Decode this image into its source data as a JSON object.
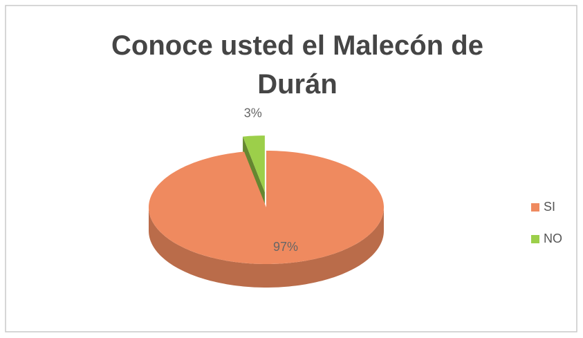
{
  "chart_data": {
    "type": "pie",
    "title": "Conoce usted el Malecón de Durán",
    "categories": [
      "SI",
      "NO"
    ],
    "values": [
      97,
      3
    ],
    "value_labels": [
      "97%",
      "3%"
    ],
    "colors": [
      "#ef8a5f",
      "#9ccf4a"
    ],
    "legend": "right"
  }
}
